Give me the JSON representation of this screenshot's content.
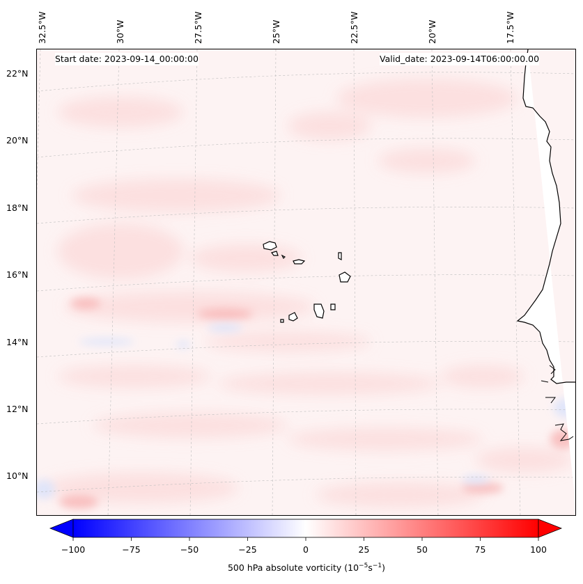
{
  "map": {
    "projection": "lambert-conformal",
    "start_label": "Start date: 2023-09-14_00:00:00",
    "valid_label": "Valid_date: 2023-09-14T06:00:00.00",
    "lon_labels": [
      "32.5°W",
      "30°W",
      "27.5°W",
      "25°W",
      "22.5°W",
      "20°W",
      "17.5°W"
    ],
    "lat_labels": [
      "22°N",
      "20°N",
      "18°N",
      "16°N",
      "14°N",
      "12°N",
      "10°N"
    ],
    "land_color": "#ffffff",
    "coastline_color": "#000000",
    "field_tint": "#fdf0f0"
  },
  "colorbar": {
    "min": -100,
    "max": 100,
    "ticks": [
      "−100",
      "−75",
      "−50",
      "−25",
      "0",
      "25",
      "50",
      "75",
      "100"
    ],
    "label_main": "500 hPa absolute vorticity (10",
    "label_exp1": "−5",
    "label_mid": "s",
    "label_exp2": "−1",
    "label_end": ")",
    "low_color": "#0000ff",
    "mid_color": "#ffffff",
    "high_color": "#ff0000"
  }
}
